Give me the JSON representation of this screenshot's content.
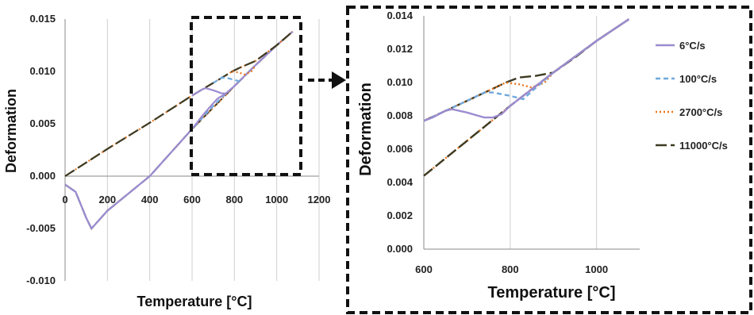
{
  "chart_data": [
    {
      "type": "line",
      "title": "",
      "xlabel": "Temperature [°C]",
      "ylabel": "Deformation",
      "xlim": [
        0,
        1200
      ],
      "ylim": [
        -0.01,
        0.015
      ],
      "x_ticks": [
        "0",
        "200",
        "400",
        "600",
        "800",
        "1000",
        "1200"
      ],
      "y_ticks": [
        "-0.010",
        "-0.005",
        "0.000",
        "0.005",
        "0.010",
        "0.015"
      ],
      "grid": "vertical",
      "series": [
        {
          "name": "6°C/s",
          "color": "#9b8bd0",
          "dash": "solid",
          "x": [
            0,
            50,
            100,
            125,
            200,
            400,
            600,
            650,
            680,
            720,
            760,
            800,
            900,
            1000,
            1075
          ],
          "values": [
            -0.0008,
            -0.0015,
            -0.004,
            -0.005,
            -0.0033,
            0.0,
            0.0045,
            0.0058,
            0.0065,
            0.0074,
            0.0079,
            0.0086,
            0.0106,
            0.0125,
            0.0138
          ]
        },
        {
          "name": "100°C/s",
          "color": "#6fa8dc",
          "dash": "dashed",
          "x": [
            0,
            50,
            100,
            125,
            200,
            400,
            600,
            700,
            760,
            800,
            830,
            900,
            1000,
            1075
          ],
          "values": [
            -0.0008,
            -0.0015,
            -0.004,
            -0.005,
            -0.0033,
            0.0,
            0.0045,
            0.0067,
            0.0079,
            0.0086,
            0.0092,
            0.0106,
            0.0125,
            0.0138
          ]
        },
        {
          "name": "2700°C/s",
          "color": "#e8761f",
          "dash": "dotted",
          "x": [
            0,
            50,
            100,
            125,
            200,
            400,
            600,
            800,
            900,
            1000,
            1075
          ],
          "values": [
            -0.0008,
            -0.0015,
            -0.004,
            -0.005,
            -0.0033,
            0.0,
            0.0045,
            0.0086,
            0.0106,
            0.0125,
            0.0138
          ]
        },
        {
          "name": "11000°C/s",
          "color": "#3d3a22",
          "dash": "long-dash",
          "x": [
            0,
            50,
            100,
            125,
            200,
            400,
            600,
            800,
            900,
            1000,
            1075
          ],
          "values": [
            -0.0008,
            -0.0015,
            -0.004,
            -0.005,
            -0.0033,
            0.0,
            0.0045,
            0.0086,
            0.0106,
            0.0125,
            0.0138
          ]
        }
      ]
    },
    {
      "type": "line",
      "title": "",
      "xlabel": "Temperature [°C]",
      "ylabel": "Deformation",
      "xlim": [
        600,
        1100
      ],
      "ylim": [
        0.0,
        0.014
      ],
      "x_ticks": [
        "600",
        "800",
        "1000"
      ],
      "y_ticks": [
        "0.000",
        "0.002",
        "0.004",
        "0.006",
        "0.008",
        "0.010",
        "0.012",
        "0.014"
      ],
      "grid": "vertical",
      "legend": "right",
      "series": [
        {
          "name": "6°C/s",
          "color": "#9b8bd0",
          "dash": "solid",
          "x": [
            600,
            620,
            650,
            665,
            700,
            740,
            760,
            780,
            800,
            900,
            1000,
            1075
          ],
          "values": [
            0.0077,
            0.0079,
            0.0083,
            0.0084,
            0.0082,
            0.0079,
            0.0079,
            0.0081,
            0.0086,
            0.0106,
            0.0125,
            0.0138
          ]
        },
        {
          "name": "100°C/s",
          "color": "#6fa8dc",
          "dash": "dashed",
          "x": [
            600,
            700,
            740,
            760,
            800,
            830,
            860,
            900,
            1000,
            1075
          ],
          "values": [
            0.0077,
            0.0089,
            0.0094,
            0.0094,
            0.0092,
            0.009,
            0.0097,
            0.0106,
            0.0125,
            0.0138
          ]
        },
        {
          "name": "2700°C/s",
          "color": "#e8761f",
          "dash": "dotted",
          "x": [
            600,
            700,
            790,
            820,
            850,
            880,
            900,
            1000,
            1075
          ],
          "values": [
            0.0077,
            0.0089,
            0.01,
            0.0099,
            0.0097,
            0.01,
            0.0106,
            0.0125,
            0.0138
          ]
        },
        {
          "name": "11000°C/s",
          "color": "#3d3a22",
          "dash": "long-dash",
          "x": [
            600,
            700,
            790,
            820,
            860,
            900,
            950,
            1000,
            1075
          ],
          "values": [
            0.0077,
            0.0089,
            0.01,
            0.0103,
            0.0104,
            0.0106,
            0.0115,
            0.0125,
            0.0138
          ]
        },
        {
          "name": "",
          "color": "#3d3a22",
          "dash": "long-dash-lower",
          "x": [
            600,
            800,
            900,
            1000,
            1075
          ],
          "values": [
            0.0044,
            0.0086,
            0.0106,
            0.0125,
            0.0138
          ]
        },
        {
          "name": "",
          "color": "#e8761f",
          "dash": "dotted-lower",
          "x": [
            600,
            800,
            900,
            1000,
            1075
          ],
          "values": [
            0.0044,
            0.0086,
            0.0106,
            0.0125,
            0.0138
          ]
        }
      ]
    }
  ],
  "left_upper": {
    "x": [
      0,
      200,
      400,
      600,
      650,
      700,
      790,
      820,
      900,
      1000,
      1075
    ],
    "values": [
      0.0,
      0.0026,
      0.0051,
      0.0077,
      0.0083,
      0.0089,
      0.01,
      0.0103,
      0.011,
      0.0125,
      0.0138
    ]
  },
  "left_branches": {
    "6": {
      "x": [
        600,
        650,
        665,
        700,
        740,
        760
      ],
      "values": [
        0.0077,
        0.0083,
        0.0084,
        0.0082,
        0.0079,
        0.0079
      ]
    },
    "100": {
      "x": [
        700,
        740,
        760,
        800,
        830
      ],
      "values": [
        0.0089,
        0.0094,
        0.0094,
        0.0092,
        0.009
      ]
    },
    "2700": {
      "x": [
        790,
        820,
        850,
        880,
        900
      ],
      "values": [
        0.01,
        0.0099,
        0.0097,
        0.01,
        0.0106
      ]
    }
  }
}
